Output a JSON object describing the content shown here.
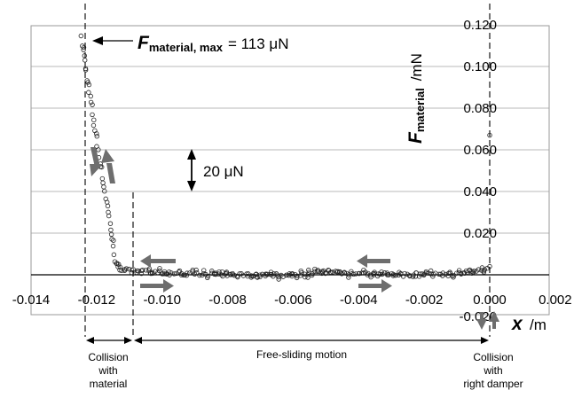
{
  "chart_data": {
    "type": "scatter",
    "x_ticks": [
      "-0.014",
      "-0.012",
      "-0.010",
      "-0.008",
      "-0.006",
      "-0.004",
      "-0.002",
      "0.000",
      "0.002"
    ],
    "y_ticks": [
      "-0.020",
      "0.020",
      "0.040",
      "0.060",
      "0.080",
      "0.100",
      "0.120"
    ],
    "xlim": [
      -0.014,
      0.002
    ],
    "ylim": [
      -0.02,
      0.12
    ],
    "grid": true,
    "xlabel": {
      "symbol": "x",
      "unit": "/m"
    },
    "ylabel": {
      "symbol": "F",
      "subscript": "material",
      "unit": "/mN"
    },
    "annotations": {
      "max_force": {
        "symbol": "F",
        "subscript": "material, max",
        "value_text": "= 113 μN"
      },
      "scale_bar": "20 μN",
      "collision_material": [
        "Collision",
        "with",
        "material"
      ],
      "free_sliding": "Free-sliding motion",
      "collision_damper": [
        "Collision",
        "with",
        "right damper"
      ]
    },
    "series": [
      {
        "marker": "open-circle",
        "points": [
          [
            -0.01245,
            0.113
          ],
          [
            -0.0124,
            0.109
          ],
          [
            -0.01238,
            0.105
          ],
          [
            -0.01235,
            0.1
          ],
          [
            -0.0123,
            0.095
          ],
          [
            -0.01225,
            0.09
          ],
          [
            -0.0122,
            0.085
          ],
          [
            -0.01215,
            0.08
          ],
          [
            -0.0121,
            0.075
          ],
          [
            -0.01205,
            0.07
          ],
          [
            -0.012,
            0.065
          ],
          [
            -0.01195,
            0.06
          ],
          [
            -0.0119,
            0.055
          ],
          [
            -0.01185,
            0.05
          ],
          [
            -0.0118,
            0.045
          ],
          [
            -0.01175,
            0.04
          ],
          [
            -0.0117,
            0.035
          ],
          [
            -0.01165,
            0.03
          ],
          [
            -0.0116,
            0.025
          ],
          [
            -0.01155,
            0.02
          ],
          [
            -0.0115,
            0.015
          ],
          [
            -0.01145,
            0.01
          ],
          [
            -0.0114,
            0.006
          ],
          [
            -0.0113,
            0.003
          ],
          [
            -0.011,
            0.002
          ],
          [
            -0.0105,
            0.0015
          ],
          [
            -0.01,
            0.001
          ],
          [
            -0.009,
            0.0005
          ],
          [
            -0.008,
            0.0
          ],
          [
            -0.007,
            -0.0005
          ],
          [
            -0.006,
            0.0
          ],
          [
            -0.005,
            0.0015
          ],
          [
            -0.004,
            0.0005
          ],
          [
            -0.003,
            0.0
          ],
          [
            -0.002,
            0.0
          ],
          [
            -0.001,
            0.0005
          ],
          [
            -0.0002,
            0.002
          ],
          [
            0.0,
            0.004
          ],
          [
            0.0,
            0.067
          ]
        ]
      }
    ]
  },
  "colors": {
    "arrow_gray": "#6e6e6e",
    "grid": "#a0a0a0"
  }
}
